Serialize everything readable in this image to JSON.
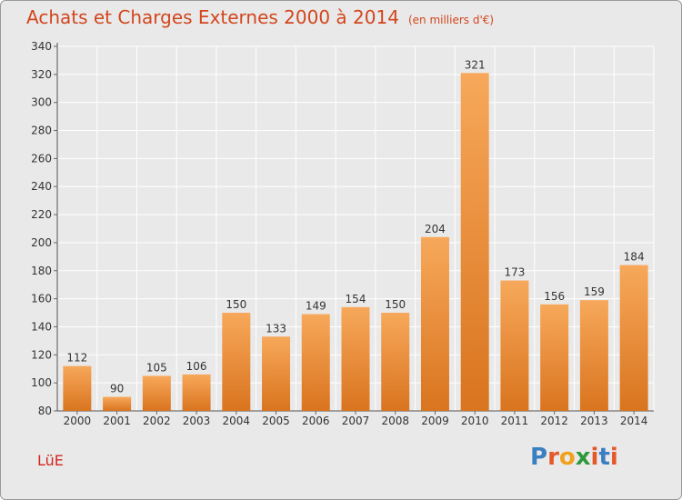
{
  "title": "Achats et Charges Externes 2000 à 2014",
  "subtitle": "(en milliers d'€)",
  "location": "LüE",
  "logo": {
    "text": "Proxiti",
    "letter_colors": [
      "#3a7fc1",
      "#e4582a",
      "#f0a21e",
      "#2f9a3c",
      "#e4582a",
      "#3a7fc1",
      "#e4582a"
    ]
  },
  "colors": {
    "bar_light": "#f7a85a",
    "bar_dark": "#d9741f",
    "title": "#d2461e",
    "location": "#d2261e",
    "grid": "#ffffff",
    "background": "#e9e9e9"
  },
  "chart_data": {
    "type": "bar",
    "categories": [
      "2000",
      "2001",
      "2002",
      "2003",
      "2004",
      "2005",
      "2006",
      "2007",
      "2008",
      "2009",
      "2010",
      "2011",
      "2012",
      "2013",
      "2014"
    ],
    "values": [
      112,
      90,
      105,
      106,
      150,
      133,
      149,
      154,
      150,
      204,
      321,
      173,
      156,
      159,
      184
    ],
    "title": "Achats et Charges Externes 2000 à 2014",
    "subtitle": "(en milliers d'€)",
    "ylim": [
      80,
      340
    ],
    "yticks": [
      80,
      100,
      120,
      140,
      160,
      180,
      200,
      220,
      240,
      260,
      280,
      300,
      320,
      340
    ],
    "grid": true,
    "data_labels": true
  }
}
